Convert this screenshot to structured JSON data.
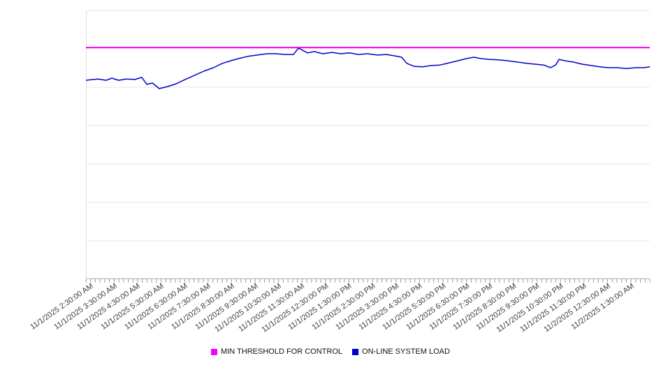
{
  "chart_data": {
    "type": "line",
    "title": "",
    "xlabel": "",
    "ylabel": "",
    "y_axis": {
      "labels_visible": false,
      "range": [
        0,
        100
      ],
      "units": "relative (no y-axis tick labels shown)",
      "gridline_divisions": 7,
      "grid": "horizontal"
    },
    "x_axis": {
      "labels": [
        "11/1/2025 2:30:00 AM",
        "11/1/2025 3:30:00 AM",
        "11/1/2025 4:30:00 AM",
        "11/1/2025 5:30:00 AM",
        "11/1/2025 6:30:00 AM",
        "11/1/2025 7:30:00 AM",
        "11/1/2025 8:30:00 AM",
        "11/1/2025 9:30:00 AM",
        "11/1/2025 10:30:00 AM",
        "11/1/2025 11:30:00 AM",
        "11/1/2025 12:30:00 PM",
        "11/1/2025 1:30:00 PM",
        "11/1/2025 2:30:00 PM",
        "11/1/2025 3:30:00 PM",
        "11/1/2025 4:30:00 PM",
        "11/1/2025 5:30:00 PM",
        "11/1/2025 6:30:00 PM",
        "11/1/2025 7:30:00 PM",
        "11/1/2025 8:30:00 PM",
        "11/1/2025 9:30:00 PM",
        "11/1/2025 10:30:00 PM",
        "11/1/2025 11:30:00 PM",
        "11/2/2025 12:30:00 AM",
        "11/2/2025 1:30:00 AM"
      ]
    },
    "series": [
      {
        "name": "MIN THRESHOLD FOR CONTROL",
        "type": "threshold-line",
        "color": "#ff00ff",
        "value": 86.2
      },
      {
        "name": "ON-LINE SYSTEM LOAD",
        "type": "line",
        "color": "#0000cd",
        "points": [
          [
            0.0,
            74.0
          ],
          [
            0.021,
            74.5
          ],
          [
            0.036,
            74.0
          ],
          [
            0.046,
            74.8
          ],
          [
            0.058,
            74.0
          ],
          [
            0.071,
            74.5
          ],
          [
            0.087,
            74.3
          ],
          [
            0.099,
            75.1
          ],
          [
            0.108,
            72.5
          ],
          [
            0.118,
            73.0
          ],
          [
            0.13,
            70.9
          ],
          [
            0.145,
            71.7
          ],
          [
            0.16,
            72.7
          ],
          [
            0.176,
            74.3
          ],
          [
            0.192,
            75.8
          ],
          [
            0.209,
            77.4
          ],
          [
            0.226,
            78.7
          ],
          [
            0.242,
            80.3
          ],
          [
            0.257,
            81.3
          ],
          [
            0.271,
            82.1
          ],
          [
            0.287,
            82.9
          ],
          [
            0.304,
            83.4
          ],
          [
            0.321,
            83.9
          ],
          [
            0.337,
            83.9
          ],
          [
            0.353,
            83.6
          ],
          [
            0.368,
            83.6
          ],
          [
            0.377,
            86.0
          ],
          [
            0.384,
            85.2
          ],
          [
            0.393,
            84.2
          ],
          [
            0.405,
            84.7
          ],
          [
            0.42,
            83.9
          ],
          [
            0.436,
            84.4
          ],
          [
            0.452,
            83.9
          ],
          [
            0.467,
            84.2
          ],
          [
            0.483,
            83.6
          ],
          [
            0.499,
            83.9
          ],
          [
            0.517,
            83.4
          ],
          [
            0.533,
            83.6
          ],
          [
            0.548,
            83.1
          ],
          [
            0.56,
            82.6
          ],
          [
            0.569,
            80.3
          ],
          [
            0.582,
            79.2
          ],
          [
            0.597,
            79.0
          ],
          [
            0.613,
            79.5
          ],
          [
            0.628,
            79.7
          ],
          [
            0.644,
            80.5
          ],
          [
            0.66,
            81.3
          ],
          [
            0.675,
            82.1
          ],
          [
            0.688,
            82.6
          ],
          [
            0.7,
            82.1
          ],
          [
            0.715,
            81.8
          ],
          [
            0.731,
            81.6
          ],
          [
            0.747,
            81.3
          ],
          [
            0.765,
            80.8
          ],
          [
            0.781,
            80.3
          ],
          [
            0.797,
            80.0
          ],
          [
            0.812,
            79.7
          ],
          [
            0.824,
            78.7
          ],
          [
            0.833,
            79.7
          ],
          [
            0.839,
            81.8
          ],
          [
            0.849,
            81.3
          ],
          [
            0.864,
            80.8
          ],
          [
            0.88,
            80.0
          ],
          [
            0.896,
            79.5
          ],
          [
            0.911,
            79.0
          ],
          [
            0.926,
            78.7
          ],
          [
            0.942,
            78.7
          ],
          [
            0.958,
            78.4
          ],
          [
            0.975,
            78.7
          ],
          [
            0.99,
            78.7
          ],
          [
            1.0,
            79.0
          ]
        ]
      }
    ],
    "legend": {
      "position": "bottom-center",
      "items": [
        {
          "label": "MIN THRESHOLD FOR CONTROL",
          "color": "#ff00ff"
        },
        {
          "label": "ON-LINE SYSTEM LOAD",
          "color": "#0000cd"
        }
      ]
    }
  },
  "colors": {
    "background": "#ffffff",
    "grid": "#e6e6e6",
    "plot_top_border": "#e6e6e6",
    "plot_left_border": "#e0e0e0",
    "axis": "#adadad",
    "tick": "#999999",
    "x_label_text": "#3c3c3c",
    "legend_text": "#111111"
  }
}
